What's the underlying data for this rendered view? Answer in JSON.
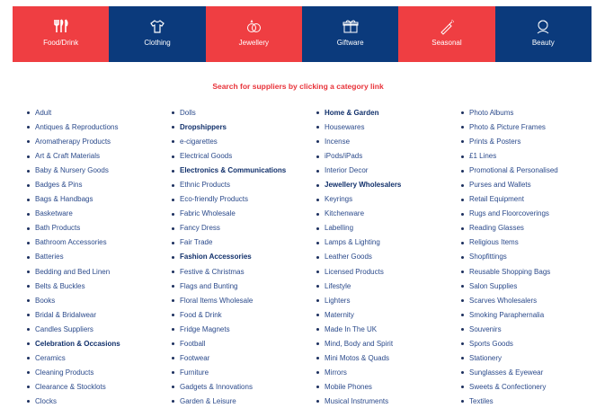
{
  "colors": {
    "red": "#ef3e42",
    "navy": "#0b3a7c"
  },
  "tiles": [
    {
      "label": "Food/Drink",
      "icon": "cutlery-icon",
      "color": "red"
    },
    {
      "label": "Clothing",
      "icon": "tshirt-icon",
      "color": "navy"
    },
    {
      "label": "Jewellery",
      "icon": "rings-icon",
      "color": "red"
    },
    {
      "label": "Giftware",
      "icon": "gift-icon",
      "color": "navy"
    },
    {
      "label": "Seasonal",
      "icon": "champagne-icon",
      "color": "red"
    },
    {
      "label": "Beauty",
      "icon": "face-icon",
      "color": "navy"
    }
  ],
  "heading": "Search for suppliers by clicking a category link",
  "columns": [
    [
      {
        "t": "Adult"
      },
      {
        "t": "Antiques & Reproductions"
      },
      {
        "t": "Aromatherapy Products"
      },
      {
        "t": "Art & Craft Materials"
      },
      {
        "t": "Baby & Nursery Goods"
      },
      {
        "t": "Badges & Pins"
      },
      {
        "t": "Bags & Handbags"
      },
      {
        "t": "Basketware"
      },
      {
        "t": "Bath Products"
      },
      {
        "t": "Bathroom Accessories"
      },
      {
        "t": "Batteries"
      },
      {
        "t": "Bedding and Bed Linen"
      },
      {
        "t": "Belts & Buckles"
      },
      {
        "t": "Books"
      },
      {
        "t": "Bridal & Bridalwear"
      },
      {
        "t": "Candles Suppliers"
      },
      {
        "t": "Celebration & Occasions",
        "b": true
      },
      {
        "t": "Ceramics"
      },
      {
        "t": "Cleaning Products"
      },
      {
        "t": "Clearance & Stocklots"
      },
      {
        "t": "Clocks"
      }
    ],
    [
      {
        "t": "Dolls"
      },
      {
        "t": "Dropshippers",
        "b": true
      },
      {
        "t": "e-cigarettes"
      },
      {
        "t": "Electrical Goods"
      },
      {
        "t": "Electronics & Communications",
        "b": true
      },
      {
        "t": "Ethnic Products"
      },
      {
        "t": "Eco-friendly Products"
      },
      {
        "t": "Fabric Wholesale"
      },
      {
        "t": "Fancy Dress"
      },
      {
        "t": "Fair Trade"
      },
      {
        "t": "Fashion Accessories",
        "b": true
      },
      {
        "t": "Festive & Christmas"
      },
      {
        "t": "Flags and Bunting"
      },
      {
        "t": "Floral Items Wholesale"
      },
      {
        "t": "Food & Drink"
      },
      {
        "t": "Fridge Magnets"
      },
      {
        "t": "Football"
      },
      {
        "t": "Footwear"
      },
      {
        "t": "Furniture"
      },
      {
        "t": "Gadgets & Innovations"
      },
      {
        "t": "Garden & Leisure"
      }
    ],
    [
      {
        "t": "Home & Garden",
        "b": true
      },
      {
        "t": "Housewares"
      },
      {
        "t": "Incense"
      },
      {
        "t": "iPods/iPads"
      },
      {
        "t": "Interior Decor"
      },
      {
        "t": "Jewellery Wholesalers",
        "b": true
      },
      {
        "t": "Keyrings"
      },
      {
        "t": "Kitchenware"
      },
      {
        "t": "Labelling"
      },
      {
        "t": "Lamps & Lighting"
      },
      {
        "t": "Leather Goods"
      },
      {
        "t": "Licensed Products"
      },
      {
        "t": "Lifestyle"
      },
      {
        "t": "Lighters"
      },
      {
        "t": "Maternity"
      },
      {
        "t": "Made In The UK"
      },
      {
        "t": "Mind, Body and Spirit"
      },
      {
        "t": "Mini Motos & Quads"
      },
      {
        "t": "Mirrors"
      },
      {
        "t": "Mobile Phones"
      },
      {
        "t": "Musical Instruments"
      }
    ],
    [
      {
        "t": "Photo Albums"
      },
      {
        "t": "Photo & Picture Frames"
      },
      {
        "t": "Prints & Posters"
      },
      {
        "t": "£1 Lines"
      },
      {
        "t": "Promotional & Personalised"
      },
      {
        "t": "Purses and Wallets"
      },
      {
        "t": "Retail Equipment"
      },
      {
        "t": "Rugs and Floorcoverings"
      },
      {
        "t": "Reading Glasses"
      },
      {
        "t": "Religious Items"
      },
      {
        "t": "Shopfittings"
      },
      {
        "t": "Reusable Shopping Bags"
      },
      {
        "t": "Salon Supplies"
      },
      {
        "t": "Scarves Wholesalers"
      },
      {
        "t": "Smoking Paraphernalia"
      },
      {
        "t": "Souvenirs"
      },
      {
        "t": "Sports Goods"
      },
      {
        "t": "Stationery"
      },
      {
        "t": "Sunglasses & Eyewear"
      },
      {
        "t": "Sweets & Confectionery"
      },
      {
        "t": "Textiles"
      }
    ]
  ]
}
